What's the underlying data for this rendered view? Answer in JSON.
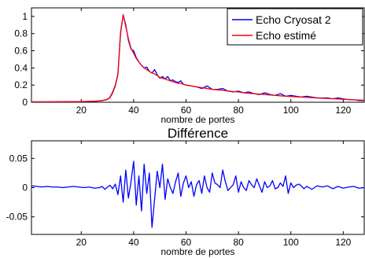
{
  "chart_data": [
    {
      "type": "line",
      "title": "",
      "xlabel": "nombre de portes",
      "ylabel": "",
      "xlim": [
        1,
        128
      ],
      "ylim": [
        0,
        1.1
      ],
      "xticks": [
        20,
        40,
        60,
        80,
        100,
        120
      ],
      "yticks": [
        0,
        0.2,
        0.4,
        0.6,
        0.8,
        1
      ],
      "ytick_labels": [
        "0",
        "0.2",
        "0.4",
        "0.6",
        "0.8",
        "1"
      ],
      "grid": false,
      "legend_position": "top-right",
      "series": [
        {
          "name": "Echo Cryosat 2",
          "color": "#0000ff",
          "x": [
            1,
            5,
            10,
            15,
            20,
            25,
            28,
            30,
            31,
            32,
            33,
            34,
            35,
            36,
            37,
            38,
            39,
            40,
            41,
            42,
            43,
            44,
            45,
            46,
            47,
            48,
            49,
            50,
            51,
            52,
            53,
            54,
            55,
            56,
            57,
            58,
            59,
            60,
            62,
            64,
            66,
            68,
            70,
            72,
            74,
            76,
            78,
            80,
            82,
            84,
            86,
            88,
            90,
            92,
            94,
            96,
            98,
            100,
            102,
            104,
            106,
            108,
            110,
            112,
            114,
            116,
            118,
            120,
            122,
            124,
            126,
            128
          ],
          "y": [
            0.005,
            0.005,
            0.006,
            0.007,
            0.008,
            0.012,
            0.02,
            0.035,
            0.06,
            0.12,
            0.2,
            0.33,
            0.8,
            1.02,
            0.9,
            0.72,
            0.62,
            0.6,
            0.52,
            0.47,
            0.43,
            0.4,
            0.41,
            0.36,
            0.34,
            0.38,
            0.32,
            0.28,
            0.3,
            0.27,
            0.3,
            0.25,
            0.26,
            0.24,
            0.23,
            0.25,
            0.21,
            0.2,
            0.19,
            0.18,
            0.16,
            0.19,
            0.15,
            0.15,
            0.16,
            0.13,
            0.12,
            0.13,
            0.11,
            0.12,
            0.1,
            0.09,
            0.11,
            0.09,
            0.08,
            0.1,
            0.07,
            0.08,
            0.07,
            0.06,
            0.07,
            0.06,
            0.05,
            0.05,
            0.05,
            0.04,
            0.05,
            0.04,
            0.03,
            0.03,
            0.02,
            0.02
          ]
        },
        {
          "name": "Echo estimé",
          "color": "#ff0000",
          "x": [
            1,
            5,
            10,
            15,
            20,
            25,
            28,
            30,
            31,
            32,
            33,
            34,
            35,
            36,
            37,
            38,
            39,
            40,
            41,
            42,
            43,
            44,
            45,
            46,
            47,
            48,
            49,
            50,
            51,
            52,
            53,
            54,
            55,
            56,
            57,
            58,
            59,
            60,
            62,
            64,
            66,
            68,
            70,
            72,
            74,
            76,
            78,
            80,
            82,
            84,
            86,
            88,
            90,
            92,
            94,
            96,
            98,
            100,
            102,
            104,
            106,
            108,
            110,
            112,
            114,
            116,
            118,
            120,
            122,
            124,
            126,
            128
          ],
          "y": [
            0.003,
            0.003,
            0.004,
            0.005,
            0.007,
            0.011,
            0.018,
            0.032,
            0.055,
            0.11,
            0.19,
            0.32,
            0.82,
            1.02,
            0.88,
            0.74,
            0.63,
            0.57,
            0.51,
            0.47,
            0.43,
            0.4,
            0.38,
            0.36,
            0.34,
            0.33,
            0.31,
            0.29,
            0.28,
            0.27,
            0.26,
            0.25,
            0.24,
            0.23,
            0.22,
            0.22,
            0.21,
            0.2,
            0.19,
            0.18,
            0.17,
            0.16,
            0.15,
            0.145,
            0.14,
            0.13,
            0.125,
            0.12,
            0.11,
            0.105,
            0.1,
            0.095,
            0.09,
            0.085,
            0.08,
            0.075,
            0.07,
            0.067,
            0.063,
            0.06,
            0.057,
            0.054,
            0.05,
            0.047,
            0.044,
            0.041,
            0.038,
            0.035,
            0.032,
            0.029,
            0.026,
            0.024
          ]
        }
      ]
    },
    {
      "type": "line",
      "title": "Différence",
      "xlabel": "nombre de portes",
      "ylabel": "",
      "xlim": [
        1,
        128
      ],
      "ylim": [
        -0.08,
        0.08
      ],
      "xticks": [
        20,
        40,
        60,
        80,
        100,
        120
      ],
      "yticks": [
        -0.05,
        0,
        0.05
      ],
      "ytick_labels": [
        "-0.05",
        "0",
        "0.05"
      ],
      "grid": false,
      "series": [
        {
          "name": "",
          "color": "#0000ff",
          "x": [
            1,
            3,
            5,
            7,
            9,
            11,
            13,
            15,
            17,
            19,
            21,
            23,
            25,
            27,
            28,
            29,
            30,
            31,
            32,
            33,
            34,
            35,
            36,
            37,
            38,
            39,
            40,
            41,
            42,
            43,
            44,
            45,
            46,
            47,
            48,
            49,
            50,
            51,
            52,
            53,
            54,
            55,
            56,
            57,
            58,
            59,
            60,
            61,
            62,
            63,
            64,
            65,
            66,
            67,
            68,
            69,
            70,
            71,
            72,
            73,
            74,
            75,
            76,
            77,
            78,
            79,
            80,
            81,
            82,
            83,
            84,
            85,
            86,
            87,
            88,
            89,
            90,
            91,
            92,
            93,
            94,
            95,
            96,
            97,
            98,
            99,
            100,
            101,
            102,
            103,
            104,
            105,
            106,
            107,
            108,
            110,
            112,
            114,
            116,
            118,
            120,
            122,
            124,
            126,
            128
          ],
          "y": [
            0.003,
            0.002,
            0.001,
            0.002,
            0.001,
            0.001,
            0.0,
            0.001,
            0.002,
            0.001,
            0.0,
            0.001,
            -0.001,
            0.0,
            0.002,
            -0.003,
            0.001,
            0.004,
            -0.002,
            0.006,
            -0.012,
            0.02,
            -0.025,
            0.03,
            -0.018,
            0.01,
            0.045,
            -0.03,
            0.02,
            -0.04,
            0.04,
            -0.01,
            0.025,
            -0.068,
            -0.02,
            0.028,
            0.0,
            0.04,
            -0.02,
            0.015,
            0.0,
            -0.01,
            0.01,
            0.025,
            -0.015,
            0.008,
            0.02,
            0.0,
            0.01,
            -0.015,
            0.005,
            0.012,
            -0.01,
            0.02,
            0.0,
            -0.008,
            0.025,
            0.008,
            0.005,
            0.0,
            0.03,
            0.01,
            -0.005,
            0.0,
            0.005,
            0.02,
            -0.008,
            0.01,
            0.0,
            -0.005,
            0.012,
            0.005,
            0.0,
            0.015,
            0.003,
            -0.008,
            0.01,
            0.0,
            0.003,
            0.012,
            -0.002,
            0.0,
            0.008,
            0.002,
            0.02,
            -0.01,
            0.008,
            0.0,
            0.004,
            0.006,
            0.003,
            -0.002,
            0.002,
            0.0,
            -0.003,
            0.003,
            0.001,
            0.003,
            -0.002,
            0.002,
            -0.001,
            0.001,
            0.002,
            -0.001,
            0.0
          ]
        }
      ]
    }
  ]
}
